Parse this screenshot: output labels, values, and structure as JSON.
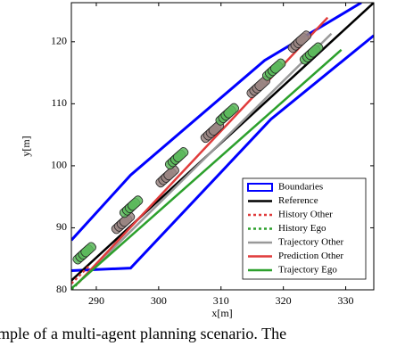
{
  "chart_data": {
    "type": "line",
    "xlabel": "x[m]",
    "ylabel": "y[m]",
    "caption": "mple of a multi-agent planning scenario. The",
    "xlim": [
      286,
      334.5
    ],
    "ylim": [
      80,
      126.3
    ],
    "xticks": [
      290,
      300,
      310,
      320,
      330
    ],
    "yticks": [
      80,
      90,
      100,
      110,
      120
    ],
    "grid": false,
    "legend": "lower right",
    "series": [
      {
        "name": "Boundaries",
        "color": "#0000ff",
        "style": "box",
        "x": [
          286,
          295.5,
          317,
          332.5,
          null,
          286,
          295.5,
          318,
          334.5
        ],
        "values": [
          88,
          98.5,
          117,
          126.3,
          null,
          83.1,
          83.5,
          107.5,
          121
        ]
      },
      {
        "name": "Reference",
        "color": "#000000",
        "style": "solid",
        "x": [
          286,
          334.5
        ],
        "values": [
          81.5,
          126.3
        ]
      },
      {
        "name": "History Other",
        "color": "#e03c3c",
        "style": "dotted",
        "x": [
          286,
          289
        ],
        "values": [
          81,
          84
        ]
      },
      {
        "name": "History Ego",
        "color": "#2ca02c",
        "style": "dotted",
        "x": [
          286,
          289
        ],
        "values": [
          80,
          83
        ]
      },
      {
        "name": "Trajectory Other",
        "color": "#999999",
        "style": "solid",
        "x": [
          288,
          327.7
        ],
        "values": [
          82,
          121.3
        ]
      },
      {
        "name": "Prediction Other",
        "color": "#e03c3c",
        "style": "solid",
        "x": [
          287,
          327.1
        ],
        "values": [
          81,
          123.9
        ]
      },
      {
        "name": "Trajectory Ego",
        "color": "#2ca02c",
        "style": "solid",
        "x": [
          286,
          329.3
        ],
        "values": [
          80.2,
          118.7
        ]
      }
    ],
    "other_vehicles": {
      "color": "#9a8582",
      "x": [
        294.3,
        301.4,
        308.6,
        316,
        322.6
      ],
      "y": [
        90.8,
        98.3,
        105.5,
        112.7,
        120
      ]
    },
    "ego_vehicles": {
      "color": "#5cb85c",
      "x": [
        288.1,
        295.6,
        302.9,
        311,
        318.5,
        324.5
      ],
      "y": [
        85.9,
        93.4,
        101.2,
        108.3,
        115.5,
        118.1
      ]
    }
  }
}
